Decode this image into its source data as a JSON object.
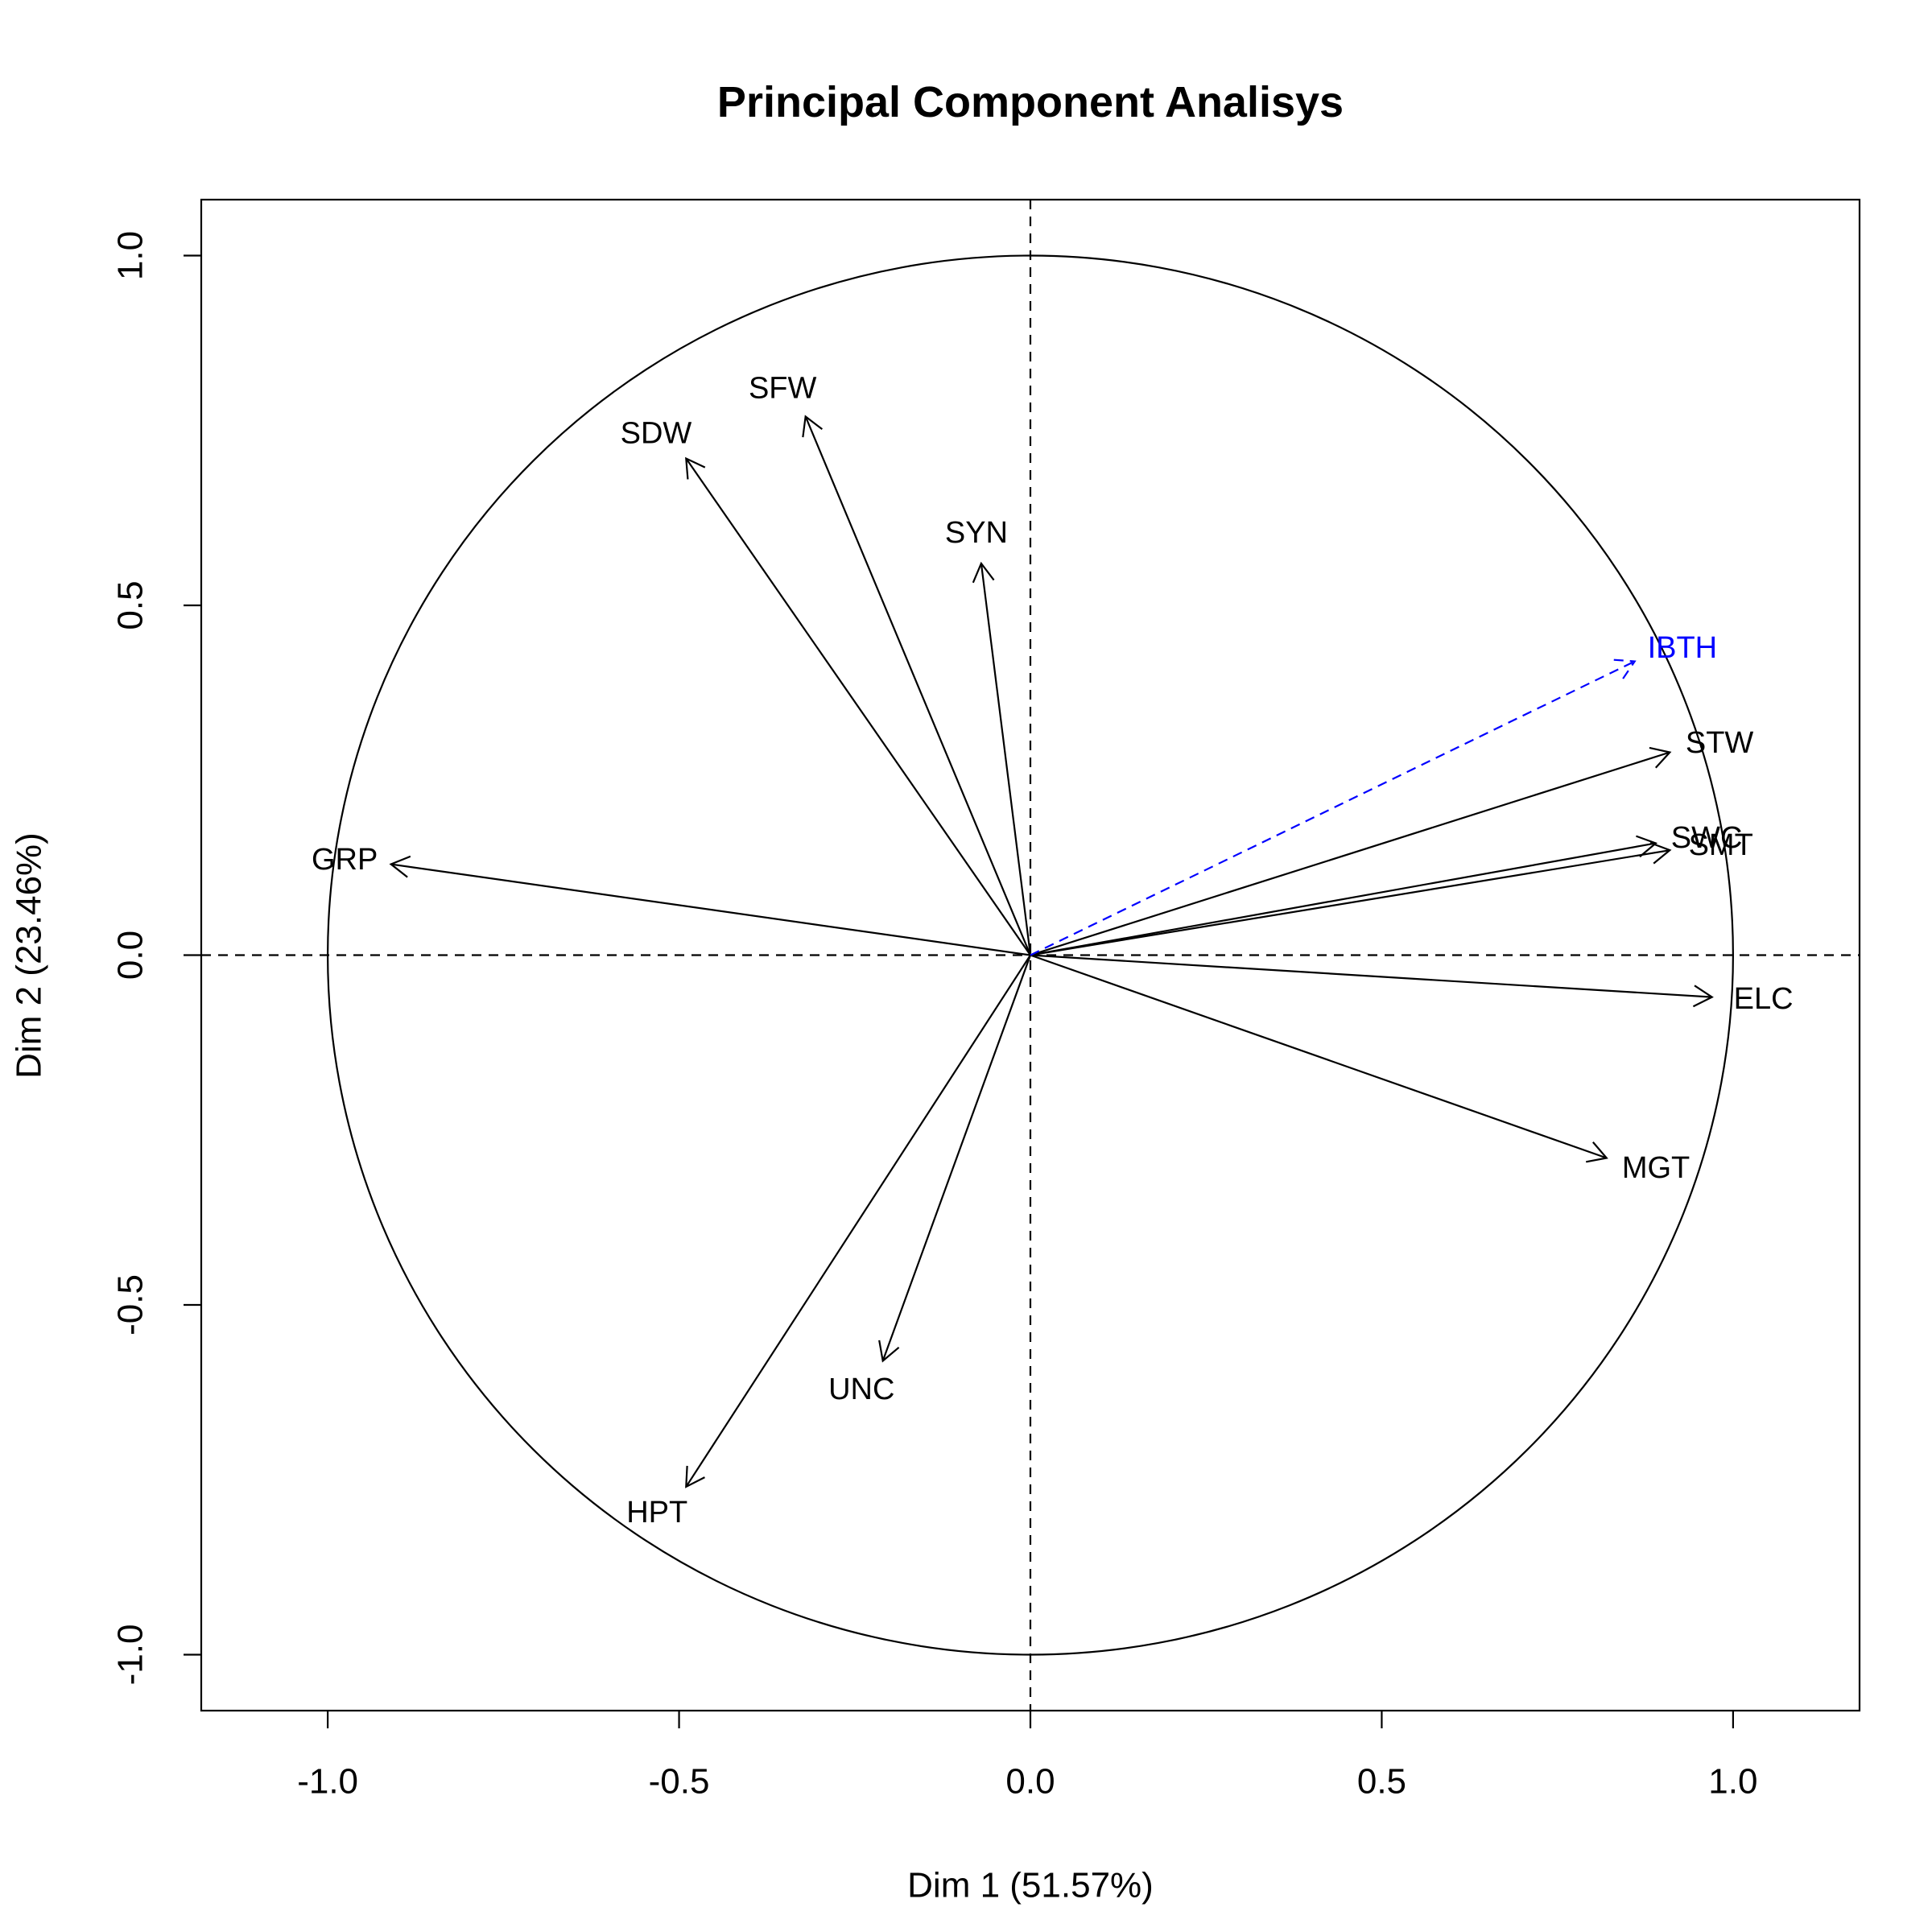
{
  "chart_data": {
    "type": "scatter",
    "subtype": "pca-variable-correlation-circle",
    "title": "Principal Component Analisys",
    "xlabel": "Dim 1 (51.57%)",
    "ylabel": "Dim 2 (23.46%)",
    "xlim": [
      -1.18,
      1.18
    ],
    "ylim": [
      -1.08,
      1.08
    ],
    "xticks": [
      -1.0,
      -0.5,
      0.0,
      0.5,
      1.0
    ],
    "yticks": [
      -1.0,
      -0.5,
      0.0,
      0.5,
      1.0
    ],
    "xtick_labels": [
      "-1.0",
      "-0.5",
      "0.0",
      "0.5",
      "1.0"
    ],
    "ytick_labels": [
      "-1.0",
      "-0.5",
      "0.0",
      "0.5",
      "1.0"
    ],
    "unit_circle": true,
    "reference_lines": [
      0,
      0
    ],
    "grid": false,
    "colors": {
      "active": "#000000",
      "supplementary": "#0000ff"
    },
    "variables": [
      {
        "name": "SFW",
        "x": -0.32,
        "y": 0.77,
        "type": "active"
      },
      {
        "name": "SDW",
        "x": -0.49,
        "y": 0.71,
        "type": "active"
      },
      {
        "name": "SYN",
        "x": -0.07,
        "y": 0.56,
        "type": "active"
      },
      {
        "name": "GRP",
        "x": -0.91,
        "y": 0.13,
        "type": "active"
      },
      {
        "name": "STW",
        "x": 0.91,
        "y": 0.29,
        "type": "active"
      },
      {
        "name": "SWC",
        "x": 0.89,
        "y": 0.16,
        "type": "active"
      },
      {
        "name": "SMT",
        "x": 0.91,
        "y": 0.15,
        "type": "active"
      },
      {
        "name": "ELC",
        "x": 0.97,
        "y": -0.06,
        "type": "active"
      },
      {
        "name": "MGT",
        "x": 0.82,
        "y": -0.29,
        "type": "active"
      },
      {
        "name": "UNC",
        "x": -0.21,
        "y": -0.58,
        "type": "active"
      },
      {
        "name": "HPT",
        "x": -0.49,
        "y": -0.76,
        "type": "active"
      },
      {
        "name": "IBTH",
        "x": 0.86,
        "y": 0.42,
        "type": "supplementary"
      }
    ]
  }
}
